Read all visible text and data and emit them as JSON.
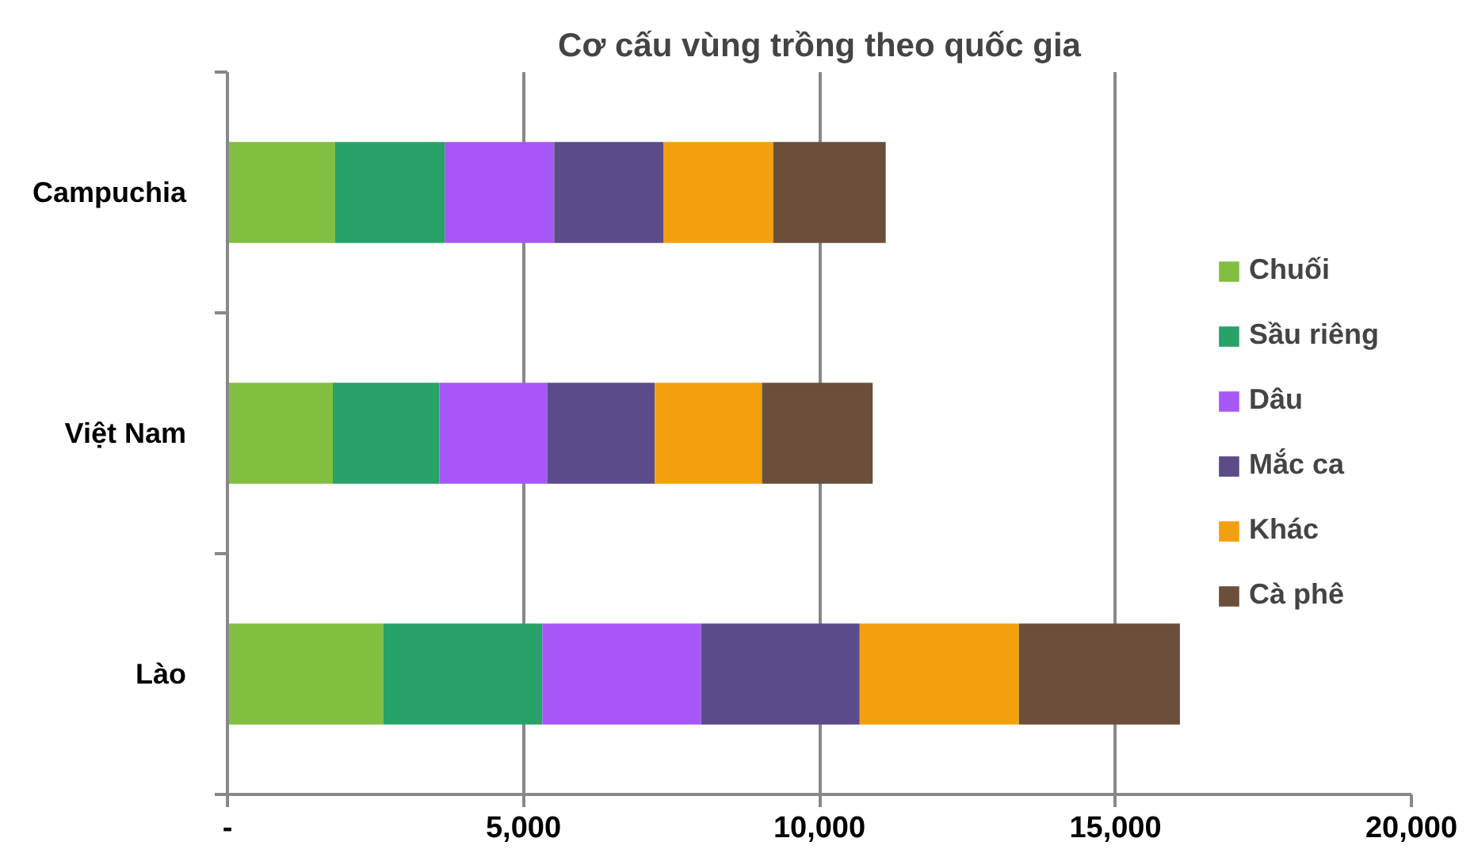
{
  "chart_data": {
    "type": "bar",
    "orientation": "horizontal",
    "stacked": true,
    "title": "Cơ cấu vùng trồng theo quốc gia",
    "categories": [
      "Campuchia",
      "Việt Nam",
      "Lào"
    ],
    "series": [
      {
        "name": "Chuối",
        "color": "#82bf41",
        "values": [
          1820,
          1780,
          2630
        ]
      },
      {
        "name": "Sầu riêng",
        "color": "#27a268",
        "values": [
          1850,
          1800,
          2690
        ]
      },
      {
        "name": "Dâu",
        "color": "#a757f7",
        "values": [
          1850,
          1820,
          2680
        ]
      },
      {
        "name": "Mắc ca",
        "color": "#5b4b8a",
        "values": [
          1850,
          1820,
          2680
        ]
      },
      {
        "name": "Khác",
        "color": "#f4a00e",
        "values": [
          1850,
          1810,
          2690
        ]
      },
      {
        "name": "Cà phê",
        "color": "#6b4f3a",
        "values": [
          1900,
          1870,
          2720
        ]
      }
    ],
    "xlim": [
      0,
      20000
    ],
    "xticks": [
      {
        "value": 0,
        "label": "-"
      },
      {
        "value": 5000,
        "label": "5,000"
      },
      {
        "value": 10000,
        "label": "10,000"
      },
      {
        "value": 15000,
        "label": "15,000"
      },
      {
        "value": 20000,
        "label": "20,000"
      }
    ],
    "grid": "x",
    "legend": "right"
  }
}
